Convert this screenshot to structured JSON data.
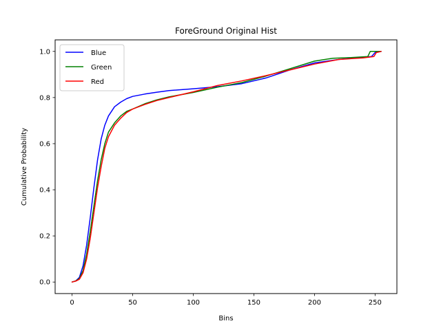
{
  "chart_data": {
    "type": "line",
    "title": "ForeGround Original Hist",
    "xlabel": "Bins",
    "ylabel": "Cumulative Probability",
    "xlim": [
      -14,
      268
    ],
    "ylim": [
      -0.05,
      1.05
    ],
    "xticks": [
      0,
      50,
      100,
      150,
      200,
      250
    ],
    "yticks": [
      0.0,
      0.2,
      0.4,
      0.6,
      0.8,
      1.0
    ],
    "xtick_labels": [
      "0",
      "50",
      "100",
      "150",
      "200",
      "250"
    ],
    "ytick_labels": [
      "0.0",
      "0.2",
      "0.4",
      "0.6",
      "0.8",
      "1.0"
    ],
    "grid": false,
    "legend_position": "top-left",
    "series": [
      {
        "name": "Blue",
        "color": "#0000ff",
        "x": [
          0,
          3,
          6,
          9,
          12,
          15,
          18,
          21,
          24,
          27,
          30,
          35,
          40,
          45,
          50,
          60,
          70,
          80,
          100,
          120,
          140,
          160,
          180,
          200,
          220,
          240,
          247,
          250,
          255
        ],
        "y": [
          0.0,
          0.005,
          0.02,
          0.07,
          0.16,
          0.28,
          0.41,
          0.53,
          0.62,
          0.68,
          0.72,
          0.76,
          0.78,
          0.795,
          0.805,
          0.815,
          0.823,
          0.83,
          0.838,
          0.847,
          0.86,
          0.885,
          0.92,
          0.95,
          0.965,
          0.975,
          0.978,
          0.995,
          1.0
        ]
      },
      {
        "name": "Green",
        "color": "#008000",
        "x": [
          0,
          3,
          6,
          9,
          12,
          15,
          18,
          21,
          24,
          27,
          30,
          35,
          40,
          45,
          50,
          60,
          70,
          80,
          100,
          120,
          140,
          160,
          180,
          200,
          215,
          230,
          244,
          246,
          255
        ],
        "y": [
          0.0,
          0.005,
          0.015,
          0.05,
          0.12,
          0.22,
          0.33,
          0.44,
          0.53,
          0.6,
          0.65,
          0.69,
          0.72,
          0.74,
          0.75,
          0.773,
          0.79,
          0.803,
          0.822,
          0.845,
          0.865,
          0.893,
          0.925,
          0.958,
          0.97,
          0.973,
          0.978,
          1.0,
          1.0
        ]
      },
      {
        "name": "Red",
        "color": "#ff0000",
        "x": [
          0,
          3,
          6,
          9,
          12,
          15,
          18,
          21,
          24,
          27,
          30,
          35,
          40,
          45,
          50,
          60,
          70,
          80,
          100,
          120,
          140,
          160,
          180,
          200,
          220,
          240,
          249,
          251,
          255
        ],
        "y": [
          0.0,
          0.004,
          0.012,
          0.04,
          0.1,
          0.19,
          0.3,
          0.41,
          0.5,
          0.58,
          0.63,
          0.68,
          0.71,
          0.735,
          0.75,
          0.77,
          0.787,
          0.8,
          0.825,
          0.852,
          0.872,
          0.895,
          0.92,
          0.945,
          0.965,
          0.972,
          0.978,
          0.995,
          1.0
        ]
      }
    ]
  }
}
